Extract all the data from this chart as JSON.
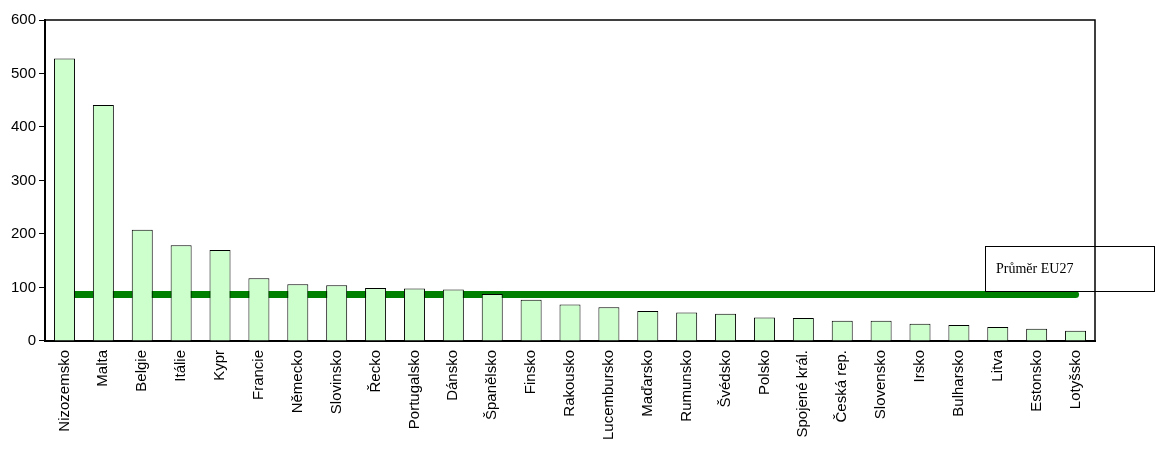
{
  "chart_data": {
    "type": "bar",
    "categories": [
      "Nizozemsko",
      "Malta",
      "Belgie",
      "Itálie",
      "Kypr",
      "Francie",
      "Německo",
      "Slovinsko",
      "Řecko",
      "Portugalsko",
      "Dánsko",
      "Španělsko",
      "Finsko",
      "Rakousko",
      "Lucembursko",
      "Maďarsko",
      "Rumunsko",
      "Švédsko",
      "Polsko",
      "Spojené král.",
      "Česká rep.",
      "Slovensko",
      "Irsko",
      "Bulharsko",
      "Litva",
      "Estonsko",
      "Lotyšsko"
    ],
    "values": [
      528,
      441,
      208,
      179,
      170,
      117,
      106,
      104,
      99,
      98,
      96,
      88,
      77,
      68,
      63,
      56,
      53,
      51,
      44,
      43,
      38,
      38,
      32,
      30,
      26,
      23,
      19
    ],
    "color": "#ccffcc",
    "ylim": [
      0,
      600
    ],
    "yticks": [
      0,
      100,
      200,
      300,
      400,
      500,
      600
    ],
    "grid": false,
    "legend": false,
    "ref_lines": [
      {
        "axis": "y",
        "value": 87,
        "label": "Průměr EU27",
        "color": "#008000",
        "line_style": "solid"
      }
    ]
  }
}
